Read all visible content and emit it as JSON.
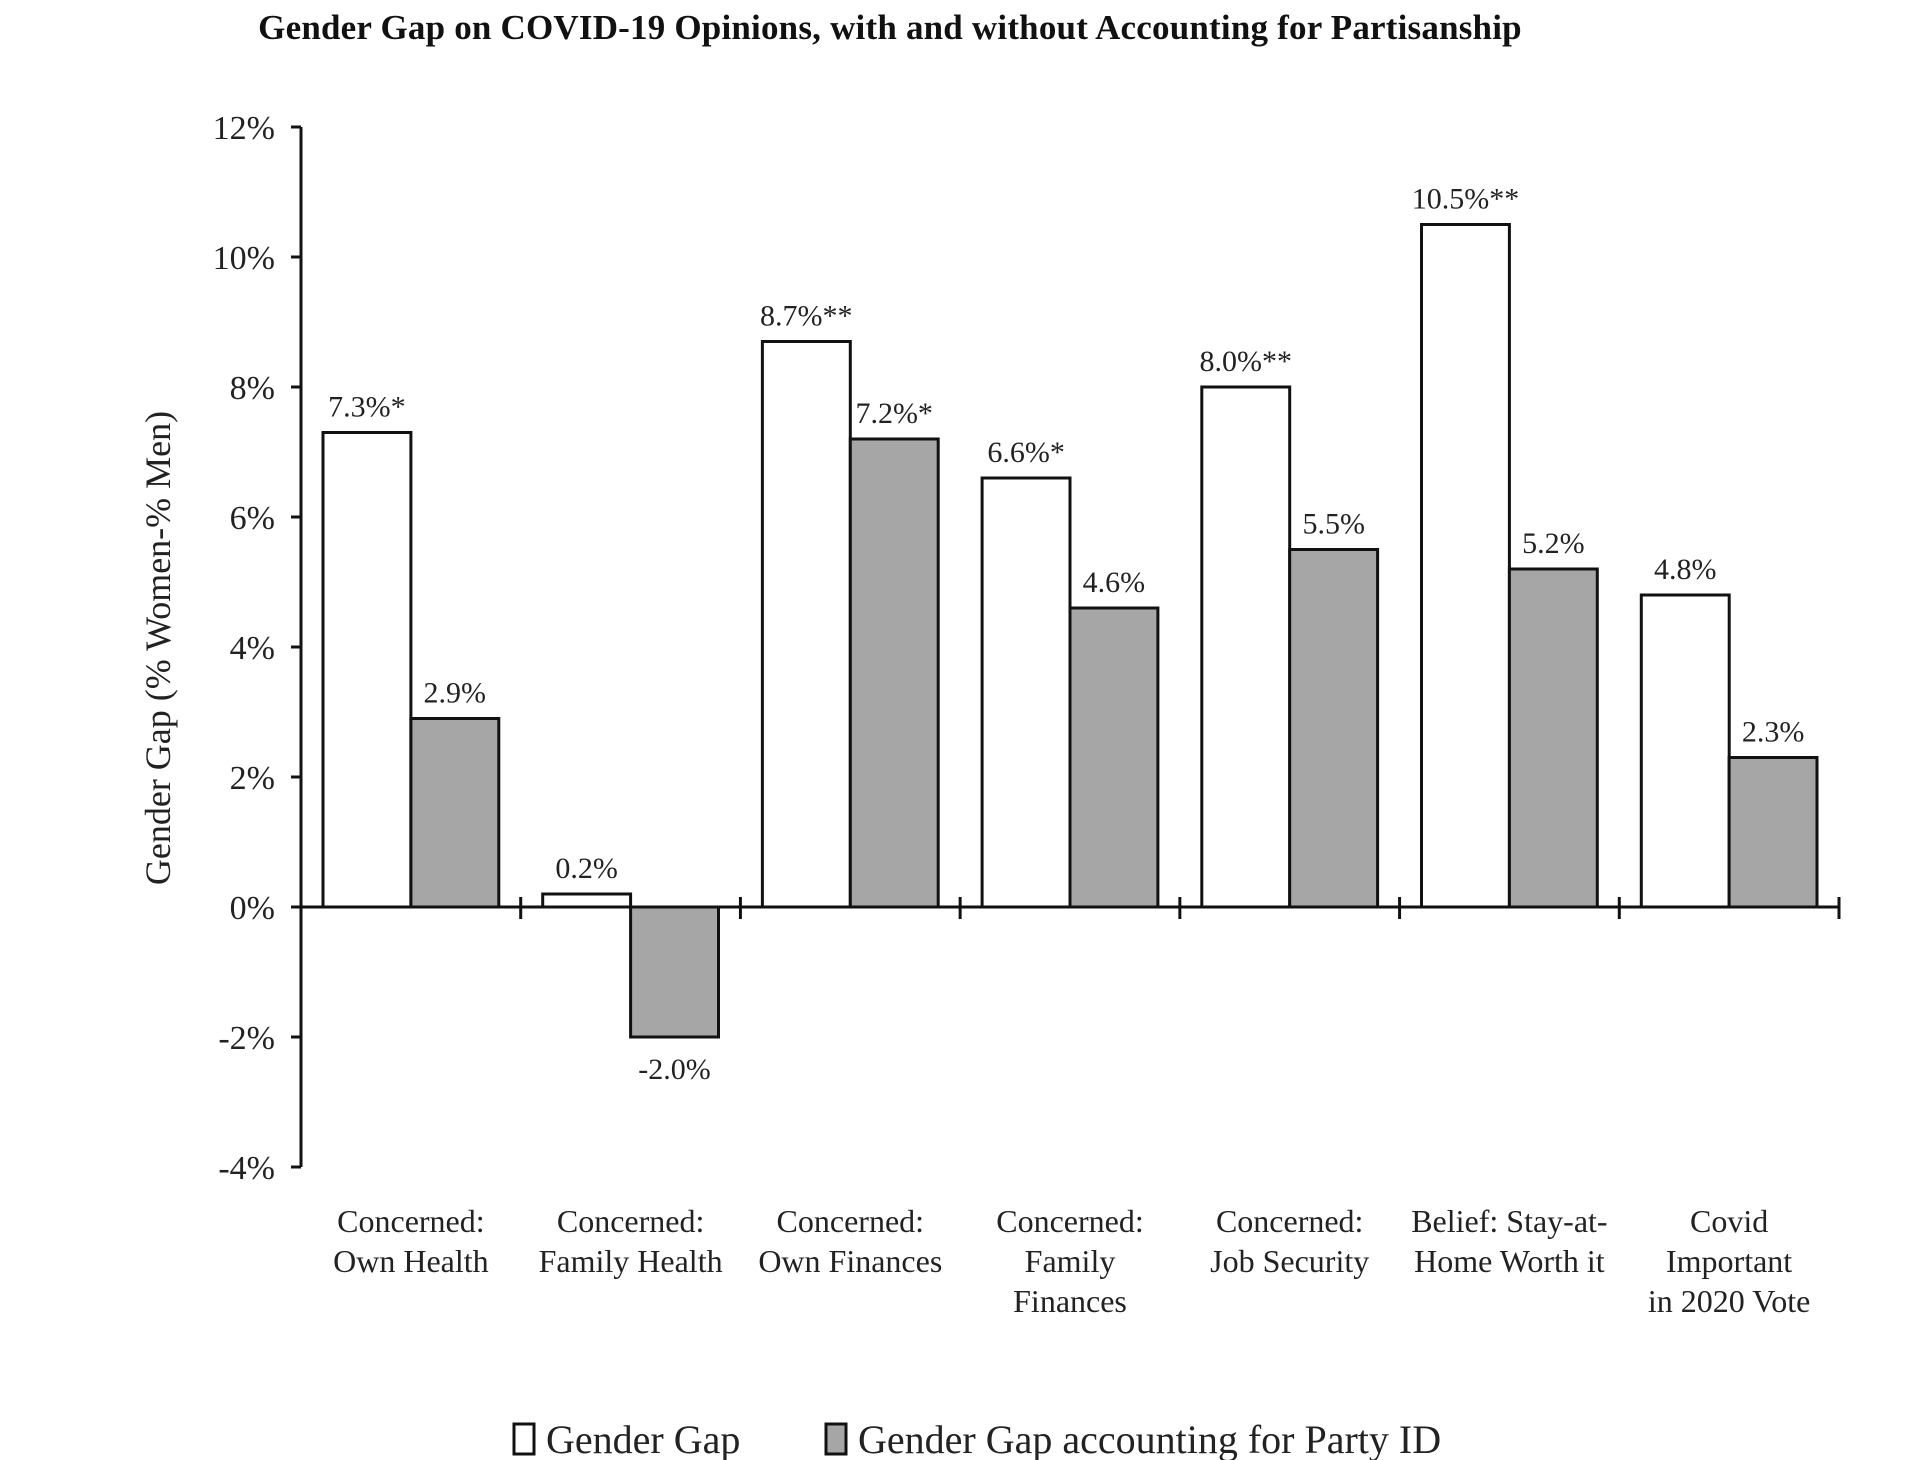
{
  "chart_data": {
    "type": "bar",
    "title": "Gender Gap on COVID-19 Opinions, with and without Accounting for Partisanship",
    "xlabel": "",
    "ylabel": "Gender Gap (% Women-% Men)",
    "ylim": [
      -4,
      12
    ],
    "yticks": [
      12,
      10,
      8,
      6,
      4,
      2,
      0,
      -2,
      -4
    ],
    "ytick_labels": [
      "12%",
      "10%",
      "8%",
      "6%",
      "4%",
      "2%",
      "0%",
      "-2%",
      "-4%"
    ],
    "grid": false,
    "legend_position": "bottom",
    "categories": [
      [
        "Concerned:",
        "Own Health"
      ],
      [
        "Concerned:",
        "Family Health"
      ],
      [
        "Concerned:",
        "Own Finances"
      ],
      [
        "Concerned:",
        "Family",
        "Finances"
      ],
      [
        "Concerned:",
        "Job Security"
      ],
      [
        "Belief: Stay-at-",
        "Home Worth it"
      ],
      [
        "Covid",
        "Important",
        "in 2020 Vote"
      ]
    ],
    "series": [
      {
        "name": "Gender Gap",
        "color": "#ffffff",
        "values": [
          7.3,
          0.2,
          8.7,
          6.6,
          8.0,
          10.5,
          4.8
        ],
        "labels": [
          "7.3%*",
          "0.2%",
          "8.7%**",
          "6.6%*",
          "8.0%**",
          "10.5%**",
          "4.8%"
        ]
      },
      {
        "name": "Gender Gap accounting for Party ID",
        "color": "#a6a6a6",
        "values": [
          2.9,
          -2.0,
          7.2,
          4.6,
          5.5,
          5.2,
          2.3
        ],
        "labels": [
          "2.9%",
          "-2.0%",
          "7.2%*",
          "4.6%",
          "5.5%",
          "5.2%",
          "2.3%"
        ]
      }
    ]
  }
}
